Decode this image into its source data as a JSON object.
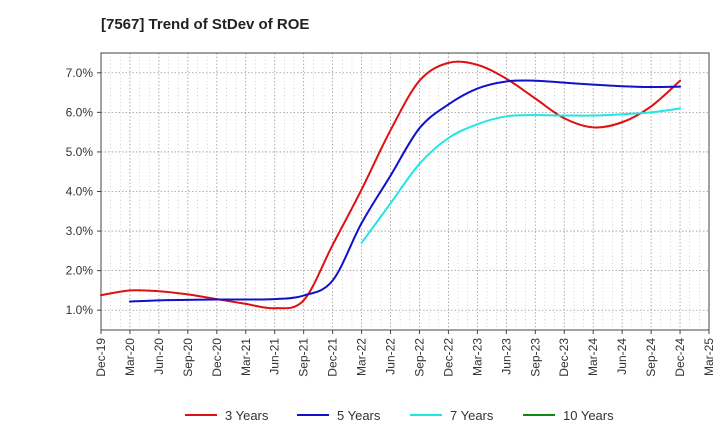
{
  "chart_data": {
    "type": "line",
    "title": "[7567]  Trend of StDev of ROE",
    "xlabel": "",
    "ylabel": "",
    "x_ticks": [
      "Dec-19",
      "Mar-20",
      "Jun-20",
      "Sep-20",
      "Dec-20",
      "Mar-21",
      "Jun-21",
      "Sep-21",
      "Dec-21",
      "Mar-22",
      "Jun-22",
      "Sep-22",
      "Dec-22",
      "Mar-23",
      "Jun-23",
      "Sep-23",
      "Dec-23",
      "Mar-24",
      "Jun-24",
      "Sep-24",
      "Dec-24",
      "Mar-25"
    ],
    "y_ticks": [
      1.0,
      2.0,
      3.0,
      4.0,
      5.0,
      6.0,
      7.0
    ],
    "y_tick_labels": [
      "1.0%",
      "2.0%",
      "3.0%",
      "4.0%",
      "5.0%",
      "6.0%",
      "7.0%"
    ],
    "ylim": [
      0.5,
      7.5
    ],
    "grid": true,
    "legend_position": "bottom",
    "series": [
      {
        "name": "3 Years",
        "color": "#dd1111",
        "x": [
          "Dec-19",
          "Mar-20",
          "Jun-20",
          "Sep-20",
          "Dec-20",
          "Mar-21",
          "Jun-21",
          "Sep-21",
          "Dec-21",
          "Mar-22",
          "Jun-22",
          "Sep-22",
          "Dec-22",
          "Mar-23",
          "Jun-23",
          "Sep-23",
          "Dec-23",
          "Mar-24",
          "Jun-24",
          "Sep-24",
          "Dec-24"
        ],
        "values": [
          1.38,
          1.5,
          1.48,
          1.4,
          1.28,
          1.16,
          1.05,
          1.25,
          2.65,
          4.05,
          5.55,
          6.8,
          7.25,
          7.2,
          6.85,
          6.35,
          5.85,
          5.62,
          5.75,
          6.15,
          6.8
        ]
      },
      {
        "name": "5 Years",
        "color": "#1111cc",
        "x": [
          "Mar-20",
          "Jun-20",
          "Sep-20",
          "Dec-20",
          "Mar-21",
          "Jun-21",
          "Sep-21",
          "Dec-21",
          "Mar-22",
          "Jun-22",
          "Sep-22",
          "Dec-22",
          "Mar-23",
          "Jun-23",
          "Sep-23",
          "Dec-23",
          "Mar-24",
          "Jun-24",
          "Sep-24",
          "Dec-24"
        ],
        "values": [
          1.22,
          1.25,
          1.26,
          1.27,
          1.27,
          1.28,
          1.37,
          1.75,
          3.2,
          4.4,
          5.6,
          6.2,
          6.6,
          6.78,
          6.8,
          6.75,
          6.7,
          6.66,
          6.64,
          6.65
        ]
      },
      {
        "name": "7 Years",
        "color": "#22e6e6",
        "x": [
          "Mar-22",
          "Jun-22",
          "Sep-22",
          "Dec-22",
          "Mar-23",
          "Jun-23",
          "Sep-23",
          "Dec-23",
          "Mar-24",
          "Jun-24",
          "Sep-24",
          "Dec-24"
        ],
        "values": [
          2.7,
          3.7,
          4.7,
          5.35,
          5.7,
          5.9,
          5.93,
          5.92,
          5.92,
          5.95,
          6.0,
          6.1
        ]
      },
      {
        "name": "10 Years",
        "color": "#118811",
        "x": [],
        "values": []
      }
    ]
  }
}
